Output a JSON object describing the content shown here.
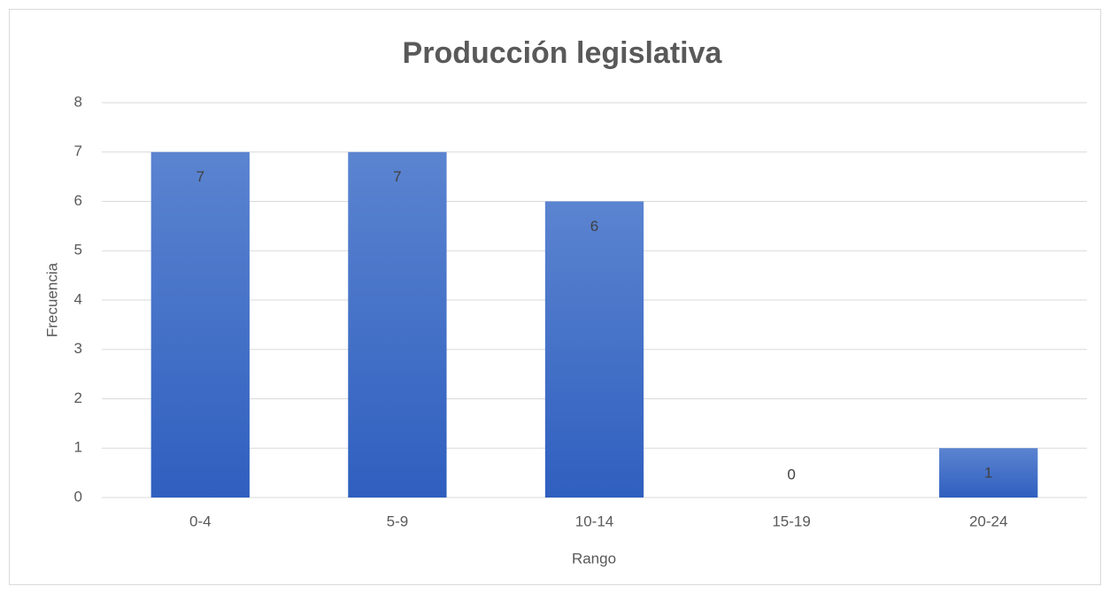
{
  "chart_data": {
    "type": "bar",
    "title": "Producción legislativa",
    "x_label": "Rango",
    "y_label": "Frecuencia",
    "categories": [
      "0-4",
      "5-9",
      "10-14",
      "15-19",
      "20-24"
    ],
    "values": [
      7,
      7,
      6,
      0,
      1
    ],
    "color": "#4472c4",
    "ylim": [
      0,
      8
    ],
    "yticks": [
      0,
      1,
      2,
      3,
      4,
      5,
      6,
      7,
      8
    ],
    "grid": true
  }
}
